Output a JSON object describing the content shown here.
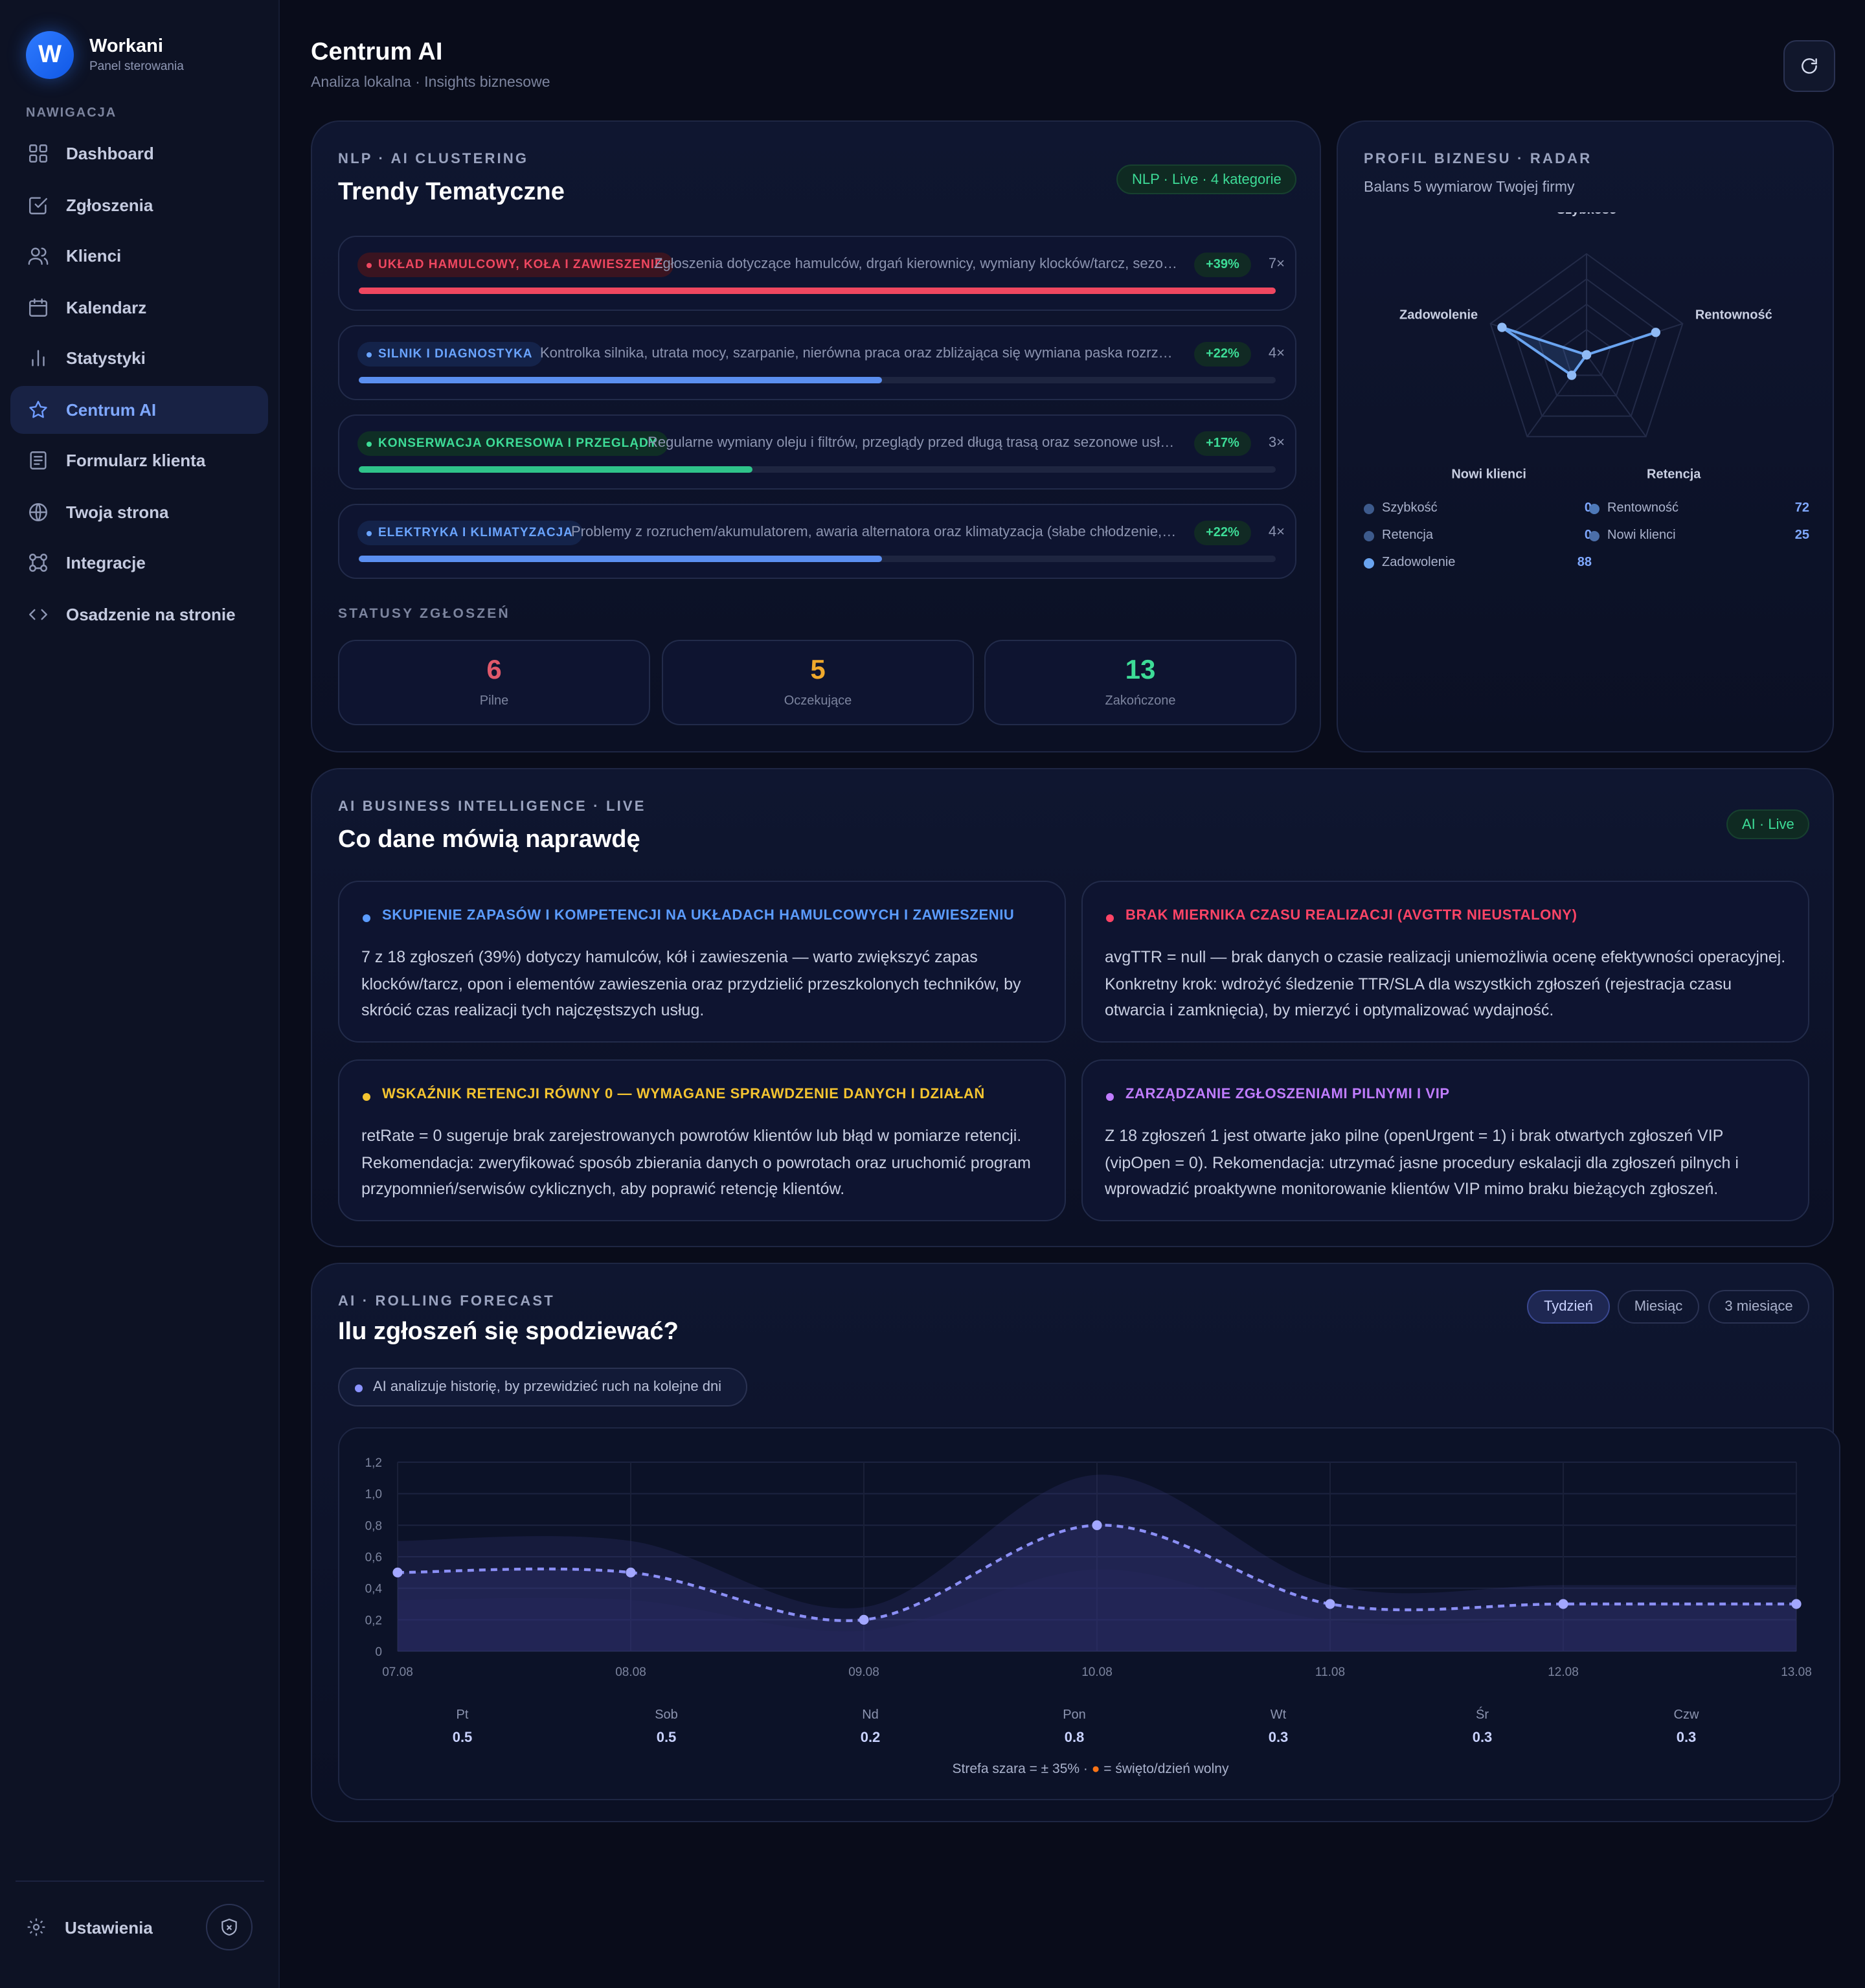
{
  "brand": {
    "initial": "W",
    "name": "Workani",
    "subtitle": "Panel sterowania"
  },
  "nav": {
    "heading": "NAWIGACJA",
    "items": [
      {
        "label": "Dashboard",
        "icon": "grid-icon"
      },
      {
        "label": "Zgłoszenia",
        "icon": "checkbox-icon"
      },
      {
        "label": "Klienci",
        "icon": "users-icon"
      },
      {
        "label": "Kalendarz",
        "icon": "calendar-icon"
      },
      {
        "label": "Statystyki",
        "icon": "bar-chart-icon"
      },
      {
        "label": "Centrum AI",
        "icon": "star-icon",
        "active": true
      },
      {
        "label": "Formularz klienta",
        "icon": "form-icon"
      },
      {
        "label": "Twoja strona",
        "icon": "globe-icon"
      },
      {
        "label": "Integracje",
        "icon": "integrations-icon"
      },
      {
        "label": "Osadzenie na stronie",
        "icon": "code-icon"
      }
    ],
    "settings": "Ustawienia"
  },
  "header": {
    "title": "Centrum AI",
    "subtitle": "Analiza lokalna · Insights biznesowe"
  },
  "clustering": {
    "kicker": "NLP · AI CLUSTERING",
    "title": "Trendy Tematyczne",
    "badge": "NLP · Live · 4 kategorie",
    "trends": [
      {
        "tag": "UKŁAD HAMULCOWY, KOŁA I ZAWIESZENIE",
        "desc": "Zgłoszenia dotyczące hamulców, drgań kierownicy, wymiany klocków/tarcz, sezonowej wymiany opon oraz usterek zawieszenia",
        "pct": "+39%",
        "count": "7×",
        "share": 1.0,
        "color": "#ef4760",
        "tagbg": "#3a1420"
      },
      {
        "tag": "SILNIK I DIAGNOSTYKA",
        "desc": "Kontrolka silnika, utrata mocy, szarpanie, nierówna praca oraz zbliżająca się wymiana paska rozrządu i diagnostyka",
        "pct": "+22%",
        "count": "4×",
        "share": 0.57,
        "color": "#5b8ff0",
        "tagbg": "#14234a"
      },
      {
        "tag": "KONSERWACJA OKRESOWA I PRZEGLĄDY",
        "desc": "Regularne wymiany oleju i filtrów, przeglądy przed długą trasą oraz sezonowe usługi serwisowe",
        "pct": "+17%",
        "count": "3×",
        "share": 0.43,
        "color": "#2fc38a",
        "tagbg": "#0f2e25"
      },
      {
        "tag": "ELEKTRYKA I KLIMATYZACJA",
        "desc": "Problemy z rozruchem/akumulatorem, awaria alternatora oraz klimatyzacja (słabe chłodzenie, nieprzyjemny zapach)",
        "pct": "+22%",
        "count": "4×",
        "share": 0.57,
        "color": "#5b8ff0",
        "tagbg": "#14234a"
      }
    ],
    "status_heading": "STATUSY ZGŁOSZEŃ",
    "statuses": [
      {
        "value": "6",
        "label": "Pilne",
        "color": "#e0596b"
      },
      {
        "value": "5",
        "label": "Oczekujące",
        "color": "#f0a92c"
      },
      {
        "value": "13",
        "label": "Zakończone",
        "color": "#3ddc97"
      }
    ]
  },
  "radar": {
    "kicker": "PROFIL BIZNESU · RADAR",
    "subtitle": "Balans 5 wymiarow Twojej firmy",
    "axes": [
      {
        "label": "Szybkość",
        "value": 0
      },
      {
        "label": "Rentowność",
        "value": 72
      },
      {
        "label": "Retencja",
        "value": 0
      },
      {
        "label": "Nowi klienci",
        "value": 25
      },
      {
        "label": "Zadowolenie",
        "value": 88
      }
    ],
    "max": 100,
    "color": "#6aa4f0"
  },
  "bi": {
    "kicker": "AI BUSINESS INTELLIGENCE · LIVE",
    "title": "Co dane mówią naprawdę",
    "badge": "AI · Live",
    "insights": [
      {
        "title": "SKUPIENIE ZAPASÓW I KOMPETENCJI NA UKŁADACH HAMULCOWYCH I ZAWIESZENIU",
        "body": "7 z 18 zgłoszeń (39%) dotyczy hamulców, kół i zawieszenia — warto zwiększyć zapas klocków/tarcz, opon i elementów zawieszenia oraz przydzielić przeszkolonych techników, by skrócić czas realizacji tych najczęstszych usług.",
        "color": "#5b9cff"
      },
      {
        "title": "BRAK MIERNIKA CZASU REALIZACJI (AVGTTR NIEUSTALONY)",
        "body": "avgTTR = null — brak danych o czasie realizacji uniemożliwia ocenę efektywności operacyjnej. Konkretny krok: wdrożyć śledzenie TTR/SLA dla wszystkich zgłoszeń (rejestracja czasu otwarcia i zamknięcia), by mierzyć i optymalizować wydajność.",
        "color": "#ff4466"
      },
      {
        "title": "WSKAŹNIK RETENCJI RÓWNY 0 — WYMAGANE SPRAWDZENIE DANYCH I DZIAŁAŃ",
        "body": "retRate = 0 sugeruje brak zarejestrowanych powrotów klientów lub błąd w pomiarze retencji. Rekomendacja: zweryfikować sposób zbierania danych o powrotach oraz uruchomić program przypomnień/serwisów cyklicznych, aby poprawić retencję klientów.",
        "color": "#f4c430"
      },
      {
        "title": "ZARZĄDZANIE ZGŁOSZENIAMI PILNYMI I VIP",
        "body": "Z 18 zgłoszeń 1 jest otwarte jako pilne (openUrgent = 1) i brak otwartych zgłoszeń VIP (vipOpen = 0). Rekomendacja: utrzymać jasne procedury eskalacji dla zgłoszeń pilnych i wprowadzić proaktywne monitorowanie klientów VIP mimo braku bieżących zgłoszeń.",
        "color": "#c07cff"
      }
    ]
  },
  "forecast": {
    "kicker": "AI · ROLLING FORECAST",
    "title": "Ilu zgłoszeń się spodziewać?",
    "tabs": [
      "Tydzień",
      "Miesiąc",
      "3 miesiące"
    ],
    "active_tab": "Tydzień",
    "chip": "AI analizuje historię, by przewidzieć ruch na kolejne dni",
    "footnote_a": "Strefa szara = ± 35% · ",
    "footnote_b": " = święto/dzień wolny",
    "holiday_color": "#f97316"
  },
  "chart_data": {
    "type": "line",
    "x": [
      "07.08",
      "08.08",
      "09.08",
      "10.08",
      "11.08",
      "12.08",
      "13.08"
    ],
    "weekdays": [
      "Pt",
      "Sob",
      "Nd",
      "Pon",
      "Wt",
      "Śr",
      "Czw"
    ],
    "values": [
      0.5,
      0.5,
      0.2,
      0.8,
      0.3,
      0.3,
      0.3
    ],
    "value_labels": [
      "0.5",
      "0.5",
      "0.2",
      "0.8",
      "0.3",
      "0.3",
      "0.3"
    ],
    "band_pct": 0.35,
    "y_ticks": [
      "0",
      "0,2",
      "0,4",
      "0,6",
      "0,8",
      "1,0",
      "1,2"
    ],
    "ylim": [
      0,
      1.2
    ],
    "grid": true,
    "line_color": "#8b8ff5"
  }
}
